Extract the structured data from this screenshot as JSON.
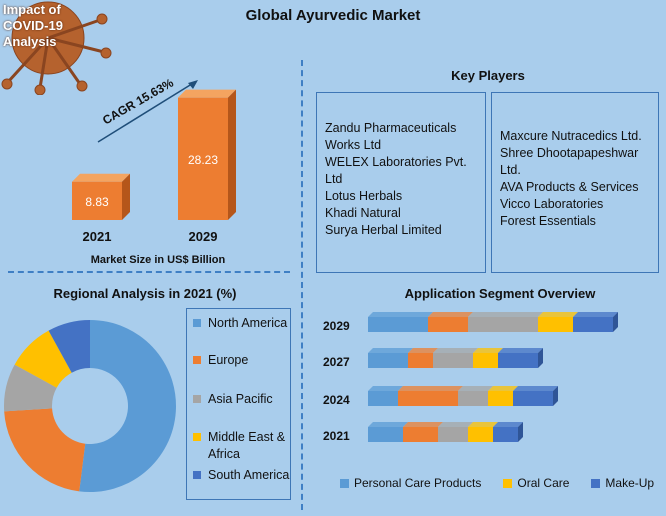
{
  "badge": {
    "lines": [
      "Impact of",
      "COVID-19",
      "Analysis"
    ]
  },
  "title": "Global Ayurvedic Market",
  "colors": {
    "blue": "#5b9bd5",
    "orange": "#ed7d31",
    "gray": "#a5a5a5",
    "yellow": "#ffc000",
    "dark_blue": "#4472c4",
    "bar_orange": "#ed7d31"
  },
  "chart_data": [
    {
      "type": "bar",
      "categories": [
        "2021",
        "2029"
      ],
      "values": [
        8.83,
        28.23
      ],
      "value_labels": [
        "8.83",
        "28.23"
      ],
      "annotation": "CAGR 15.63%",
      "xlabel": "Market Size in US$ Billion"
    },
    {
      "type": "pie",
      "title": "Regional Analysis in 2021 (%)",
      "labels": [
        "North America",
        "Europe",
        "Asia Pacific",
        "Middle East & Africa",
        "South America"
      ],
      "values": [
        52,
        22,
        9,
        9,
        8
      ],
      "colors": [
        "#5b9bd5",
        "#ed7d31",
        "#a5a5a5",
        "#ffc000",
        "#4472c4"
      ]
    },
    {
      "type": "bar",
      "title": "Application Segment Overview",
      "categories": [
        "2029",
        "2027",
        "2024",
        "2021"
      ],
      "series": [
        {
          "name": "Personal Care Products",
          "values": [
            60,
            40,
            30,
            35
          ]
        },
        {
          "name": "",
          "values": [
            40,
            25,
            60,
            35
          ]
        },
        {
          "name": "",
          "values": [
            70,
            40,
            30,
            30
          ]
        },
        {
          "name": "Oral Care",
          "values": [
            35,
            25,
            25,
            25
          ]
        },
        {
          "name": "Make-Up",
          "values": [
            40,
            40,
            40,
            25
          ]
        }
      ],
      "legend_labels": [
        "Personal Care Products",
        "Oral Care",
        "Make-Up"
      ],
      "legend_colors": [
        "#5b9bd5",
        "#ffc000",
        "#4472c4"
      ]
    }
  ],
  "key_players": {
    "title": "Key Players",
    "left": [
      "Zandu Pharmaceuticals Works Ltd",
      "WELEX Laboratories Pvt. Ltd",
      "Lotus Herbals",
      "Khadi Natural",
      "Surya Herbal Limited"
    ],
    "right": [
      "Maxcure Nutracedics Ltd.",
      "Shree Dhootapapeshwar Ltd.",
      "AVA Products & Services",
      "Vicco Laboratories",
      "Forest Essentials"
    ]
  }
}
